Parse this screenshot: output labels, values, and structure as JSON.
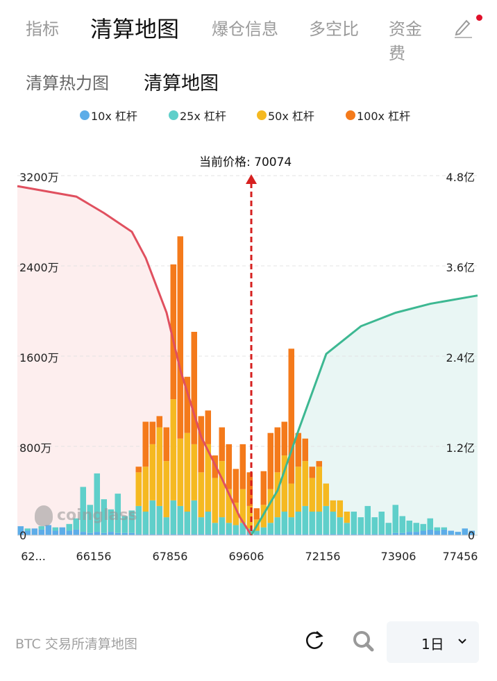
{
  "top_tabs": [
    {
      "label": "指标"
    },
    {
      "label": "清算地图"
    },
    {
      "label": "爆仓信息"
    },
    {
      "label": "多空比"
    },
    {
      "label": "资金费"
    }
  ],
  "sub_tabs": [
    {
      "label": "清算热力图"
    },
    {
      "label": "清算地图"
    }
  ],
  "watermark": "coinglass",
  "footer": {
    "title": "BTC 交易所清算地图",
    "period": "1日"
  },
  "colors": {
    "lev10": "#5dade8",
    "lev25": "#5fcfca",
    "lev50": "#f5b921",
    "lev100": "#f47a1b",
    "short_cum": "#e0505f",
    "long_cum": "#3db892",
    "price_line": "#d6201f"
  },
  "chart_data": {
    "type": "bar",
    "current_price_label": "当前价格: 70074",
    "legend": [
      "10x 杠杆",
      "25x 杠杆",
      "50x 杠杆",
      "100x 杠杆"
    ],
    "x_tick_labels": [
      "62...",
      "66156",
      "67856",
      "69606",
      "72156",
      "73906",
      "77456"
    ],
    "y_left_ticks": [
      "0",
      "800万",
      "1600万",
      "2400万",
      "3200万"
    ],
    "y_left_range_wan": [
      0,
      3200
    ],
    "y_right_ticks": [
      "0",
      "1.2亿",
      "2.4亿",
      "3.6亿",
      "4.8亿"
    ],
    "y_right_range_yi": [
      0,
      4.8
    ],
    "current_price_index": 33.7,
    "series": [
      {
        "name": "10x 杠杆",
        "values": [
          80,
          40,
          60,
          50,
          90,
          40,
          70,
          40,
          50,
          30,
          20,
          30,
          20,
          30,
          20,
          20,
          20,
          10,
          10,
          10,
          10,
          10,
          10,
          10,
          10,
          10,
          10,
          10,
          10,
          10,
          10,
          10,
          10,
          10,
          10,
          10,
          10,
          10,
          10,
          10,
          10,
          10,
          10,
          10,
          10,
          10,
          10,
          10,
          10,
          10,
          10,
          10,
          10,
          10,
          20,
          20,
          30,
          30,
          40,
          50,
          40,
          50,
          40,
          30,
          60,
          40
        ]
      },
      {
        "name": "25x 杠杆",
        "values": [
          0,
          20,
          0,
          30,
          0,
          30,
          0,
          60,
          100,
          400,
          250,
          520,
          300,
          200,
          350,
          150,
          200,
          250,
          200,
          300,
          250,
          150,
          300,
          250,
          200,
          300,
          150,
          200,
          100,
          150,
          100,
          80,
          100,
          50,
          30,
          60,
          100,
          150,
          200,
          150,
          200,
          250,
          200,
          200,
          250,
          200,
          150,
          100,
          200,
          150,
          250,
          150,
          200,
          100,
          250,
          150,
          100,
          80,
          60,
          100,
          30,
          20,
          0,
          0,
          0,
          0
        ]
      },
      {
        "name": "50x 杠杆",
        "values": [
          0,
          0,
          0,
          0,
          0,
          0,
          0,
          0,
          0,
          0,
          0,
          0,
          0,
          0,
          0,
          0,
          0,
          300,
          400,
          500,
          700,
          500,
          900,
          600,
          700,
          500,
          400,
          600,
          400,
          500,
          300,
          200,
          300,
          200,
          100,
          200,
          300,
          400,
          500,
          300,
          400,
          400,
          300,
          400,
          200,
          100,
          150,
          100,
          0,
          0,
          0,
          0,
          0,
          0,
          0,
          0,
          0,
          0,
          0,
          0,
          0,
          0,
          0,
          0,
          0,
          0
        ]
      },
      {
        "name": "100x 杠杆",
        "values": [
          0,
          0,
          0,
          0,
          0,
          0,
          0,
          0,
          0,
          0,
          0,
          0,
          0,
          0,
          0,
          0,
          0,
          50,
          400,
          200,
          100,
          300,
          1200,
          1800,
          500,
          1000,
          500,
          300,
          200,
          300,
          400,
          300,
          400,
          300,
          100,
          300,
          500,
          400,
          300,
          1200,
          300,
          200,
          100,
          50,
          0,
          0,
          0,
          0,
          0,
          0,
          0,
          0,
          0,
          0,
          0,
          0,
          0,
          0,
          0,
          0,
          0,
          0,
          0,
          0,
          0,
          0
        ]
      }
    ],
    "cumulative_short_yi": [
      [
        0,
        4.66
      ],
      [
        8.5,
        4.52
      ],
      [
        12.5,
        4.3
      ],
      [
        16.5,
        4.05
      ],
      [
        18.5,
        3.7
      ],
      [
        21.5,
        2.97
      ],
      [
        23.5,
        2.2
      ],
      [
        26.5,
        1.31
      ],
      [
        29.5,
        0.75
      ],
      [
        32,
        0.25
      ],
      [
        33.7,
        0
      ]
    ],
    "cumulative_long_yi": [
      [
        33.7,
        0
      ],
      [
        37.5,
        0.6
      ],
      [
        40.5,
        1.4
      ],
      [
        44.5,
        2.42
      ],
      [
        49.5,
        2.79
      ],
      [
        54.5,
        2.97
      ],
      [
        59.5,
        3.09
      ],
      [
        66.3,
        3.2
      ]
    ]
  }
}
